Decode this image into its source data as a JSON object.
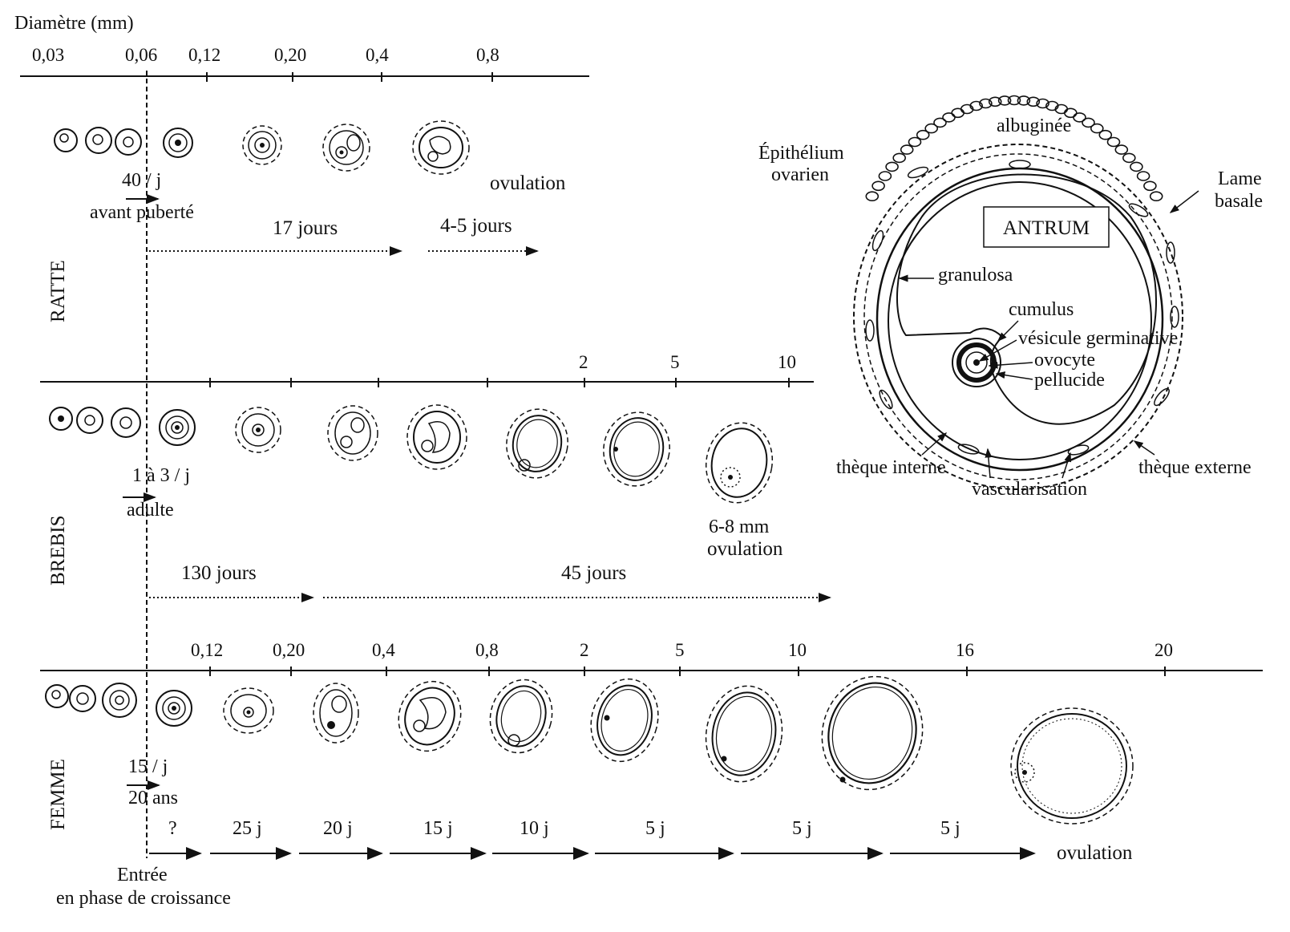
{
  "header": {
    "axis_title": "Diamètre (mm)"
  },
  "axes": {
    "top": [
      "0,03",
      "0,06",
      "0,12",
      "0,20",
      "0,4",
      "0,8"
    ],
    "mid": [
      "2",
      "5",
      "10"
    ],
    "bottom": [
      "0,12",
      "0,20",
      "0,4",
      "0,8",
      "2",
      "5",
      "10",
      "16",
      "20"
    ]
  },
  "species": {
    "ratte": "RATTE",
    "brebis": "BREBIS",
    "femme": "FEMME"
  },
  "ratte": {
    "rate": "40 / j",
    "stage": "avant puberté",
    "dur1": "17 jours",
    "dur2": "4-5 jours",
    "ovulation": "ovulation"
  },
  "brebis": {
    "rate": "1 à 3 / j",
    "stage": "adulte",
    "size": "6-8 mm",
    "ovulation": "ovulation",
    "dur1": "130 jours",
    "dur2": "45 jours"
  },
  "femme": {
    "rate": "15 / j",
    "stage": "20 ans",
    "durations": [
      "?",
      "25 j",
      "20 j",
      "15 j",
      "10 j",
      "5 j",
      "5 j",
      "5 j"
    ],
    "ovulation": "ovulation",
    "entry_line1": "Entrée",
    "entry_line2": "en phase de croissance"
  },
  "follicle_labels": {
    "albuginee": "albuginée",
    "epithelium1": "Épithélium",
    "epithelium2": "ovarien",
    "lame1": "Lame",
    "lame2": "basale",
    "antrum": "ANTRUM",
    "granulosa": "granulosa",
    "cumulus": "cumulus",
    "vesicule": "vésicule germinative",
    "ovocyte": "ovocyte",
    "pellucide": "pellucide",
    "theque_interne": "thèque interne",
    "theque_externe": "thèque externe",
    "vascularisation": "vascularisation"
  }
}
